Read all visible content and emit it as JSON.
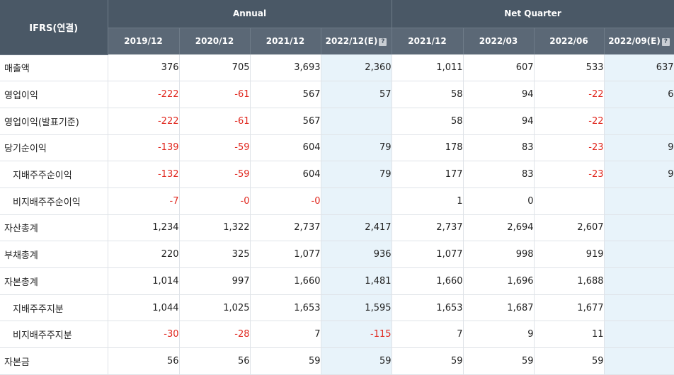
{
  "header": {
    "corner": "IFRS(연결)",
    "group_annual": "Annual",
    "group_quarter": "Net Quarter",
    "columns": [
      "2019/12",
      "2020/12",
      "2021/12",
      "2022/12(E)",
      "2021/12",
      "2022/03",
      "2022/06",
      "2022/09(E)"
    ],
    "estimate_icon": "?"
  },
  "rows": [
    {
      "label": "매출액",
      "sub": false,
      "values": [
        "376",
        "705",
        "3,693",
        "2,360",
        "1,011",
        "607",
        "533",
        "637"
      ]
    },
    {
      "label": "영업이익",
      "sub": false,
      "values": [
        "-222",
        "-61",
        "567",
        "57",
        "58",
        "94",
        "-22",
        "6"
      ]
    },
    {
      "label": "영업이익(발표기준)",
      "sub": false,
      "values": [
        "-222",
        "-61",
        "567",
        "",
        "58",
        "94",
        "-22",
        ""
      ]
    },
    {
      "label": "당기순이익",
      "sub": false,
      "values": [
        "-139",
        "-59",
        "604",
        "79",
        "178",
        "83",
        "-23",
        "9"
      ]
    },
    {
      "label": "지배주주순이익",
      "sub": true,
      "values": [
        "-132",
        "-59",
        "604",
        "79",
        "177",
        "83",
        "-23",
        "9"
      ]
    },
    {
      "label": "비지배주주순이익",
      "sub": true,
      "values": [
        "-7",
        "-0",
        "-0",
        "",
        "1",
        "0",
        "",
        ""
      ]
    },
    {
      "label": "자산총계",
      "sub": false,
      "values": [
        "1,234",
        "1,322",
        "2,737",
        "2,417",
        "2,737",
        "2,694",
        "2,607",
        ""
      ]
    },
    {
      "label": "부채총계",
      "sub": false,
      "values": [
        "220",
        "325",
        "1,077",
        "936",
        "1,077",
        "998",
        "919",
        ""
      ]
    },
    {
      "label": "자본총계",
      "sub": false,
      "values": [
        "1,014",
        "997",
        "1,660",
        "1,481",
        "1,660",
        "1,696",
        "1,688",
        ""
      ]
    },
    {
      "label": "지배주주지분",
      "sub": true,
      "values": [
        "1,044",
        "1,025",
        "1,653",
        "1,595",
        "1,653",
        "1,687",
        "1,677",
        ""
      ]
    },
    {
      "label": "비지배주주지분",
      "sub": true,
      "values": [
        "-30",
        "-28",
        "7",
        "-115",
        "7",
        "9",
        "11",
        ""
      ]
    },
    {
      "label": "자본금",
      "sub": false,
      "values": [
        "56",
        "56",
        "59",
        "59",
        "59",
        "59",
        "59",
        ""
      ]
    }
  ],
  "colors": {
    "header_bg": "#4a5866",
    "estimate_bg": "#e8f3fa",
    "negative": "#e0271e"
  }
}
